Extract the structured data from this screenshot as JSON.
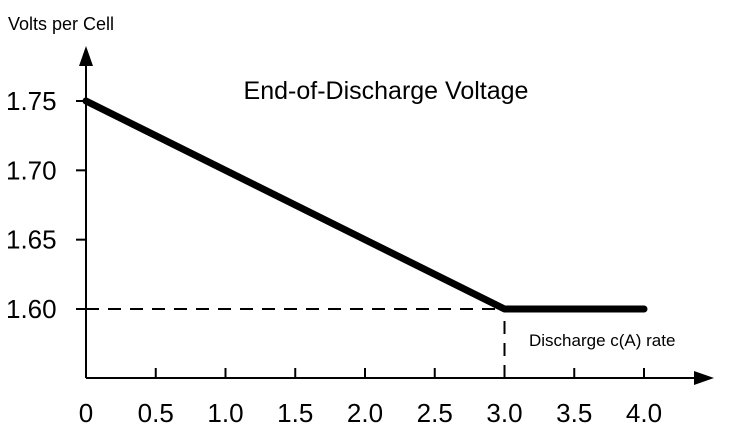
{
  "chart_data": {
    "type": "line",
    "title": "End-of-Discharge Voltage",
    "xlabel": "Discharge c(A) rate",
    "ylabel": "Volts per Cell",
    "xlim": [
      0,
      4.0
    ],
    "ylim": [
      1.575,
      1.75
    ],
    "x_ticks": [
      "0",
      "0.5",
      "1.0",
      "1.5",
      "2.0",
      "2.5",
      "3.0",
      "3.5",
      "4.0"
    ],
    "x_tick_values": [
      0,
      0.5,
      1.0,
      1.5,
      2.0,
      2.5,
      3.0,
      3.5,
      4.0
    ],
    "y_ticks": [
      "1.75",
      "1.70",
      "1.65",
      "1.60"
    ],
    "y_tick_values": [
      1.75,
      1.7,
      1.65,
      1.6
    ],
    "series": [
      {
        "x": [
          0,
          3.0,
          4.0
        ],
        "values": [
          1.75,
          1.6,
          1.6
        ]
      }
    ],
    "reference_lines": [
      {
        "style": "dashed",
        "x": [
          0,
          3.0
        ],
        "values": [
          1.6,
          1.6
        ]
      },
      {
        "style": "dashed",
        "x": [
          3.0,
          3.0
        ],
        "values": [
          1.575,
          1.6
        ]
      }
    ],
    "grid": false,
    "legend": "none",
    "colors": {
      "line": "#000000",
      "axis": "#000000",
      "background": "#ffffff"
    }
  }
}
